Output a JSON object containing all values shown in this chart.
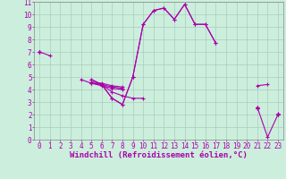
{
  "background_color": "#cceedd",
  "grid_color": "#aaccbb",
  "line_color": "#aa00aa",
  "marker": "+",
  "markersize": 3,
  "linewidth": 0.8,
  "xlabel": "Windchill (Refroidissement éolien,°C)",
  "xlabel_fontsize": 6.5,
  "tick_fontsize": 5.5,
  "xlim": [
    -0.5,
    23.5
  ],
  "ylim": [
    0,
    11
  ],
  "xticks": [
    0,
    1,
    2,
    3,
    4,
    5,
    6,
    7,
    8,
    9,
    10,
    11,
    12,
    13,
    14,
    15,
    16,
    17,
    18,
    19,
    20,
    21,
    22,
    23
  ],
  "yticks": [
    0,
    1,
    2,
    3,
    4,
    5,
    6,
    7,
    8,
    9,
    10,
    11
  ],
  "series": [
    [
      7.0,
      6.7,
      null,
      null,
      4.8,
      4.5,
      4.4,
      3.8,
      3.5,
      3.3,
      3.3,
      null,
      null,
      null,
      null,
      null,
      null,
      null,
      null,
      null,
      null,
      2.6,
      null,
      2.0
    ],
    [
      7.0,
      null,
      null,
      null,
      null,
      4.6,
      4.5,
      4.3,
      4.2,
      null,
      null,
      null,
      null,
      null,
      null,
      null,
      null,
      null,
      null,
      null,
      null,
      2.5,
      null,
      2.0
    ],
    [
      7.0,
      null,
      null,
      null,
      null,
      4.5,
      4.4,
      4.2,
      4.1,
      null,
      null,
      null,
      null,
      null,
      null,
      null,
      null,
      null,
      null,
      null,
      null,
      2.5,
      null,
      2.1
    ],
    [
      7.0,
      null,
      null,
      null,
      null,
      4.5,
      4.3,
      4.1,
      4.0,
      null,
      null,
      null,
      null,
      null,
      null,
      null,
      null,
      null,
      null,
      null,
      null,
      2.5,
      null,
      2.1
    ],
    [
      7.0,
      null,
      null,
      null,
      null,
      4.8,
      4.4,
      3.3,
      2.8,
      5.0,
      9.2,
      10.3,
      10.5,
      9.6,
      10.8,
      9.2,
      9.2,
      7.7,
      null,
      null,
      null,
      4.3,
      4.4,
      null
    ],
    [
      7.0,
      null,
      null,
      null,
      null,
      4.8,
      4.4,
      3.3,
      2.8,
      5.0,
      9.2,
      10.3,
      10.5,
      9.6,
      10.8,
      9.2,
      9.2,
      7.7,
      null,
      null,
      null,
      2.6,
      0.2,
      2.0
    ]
  ]
}
